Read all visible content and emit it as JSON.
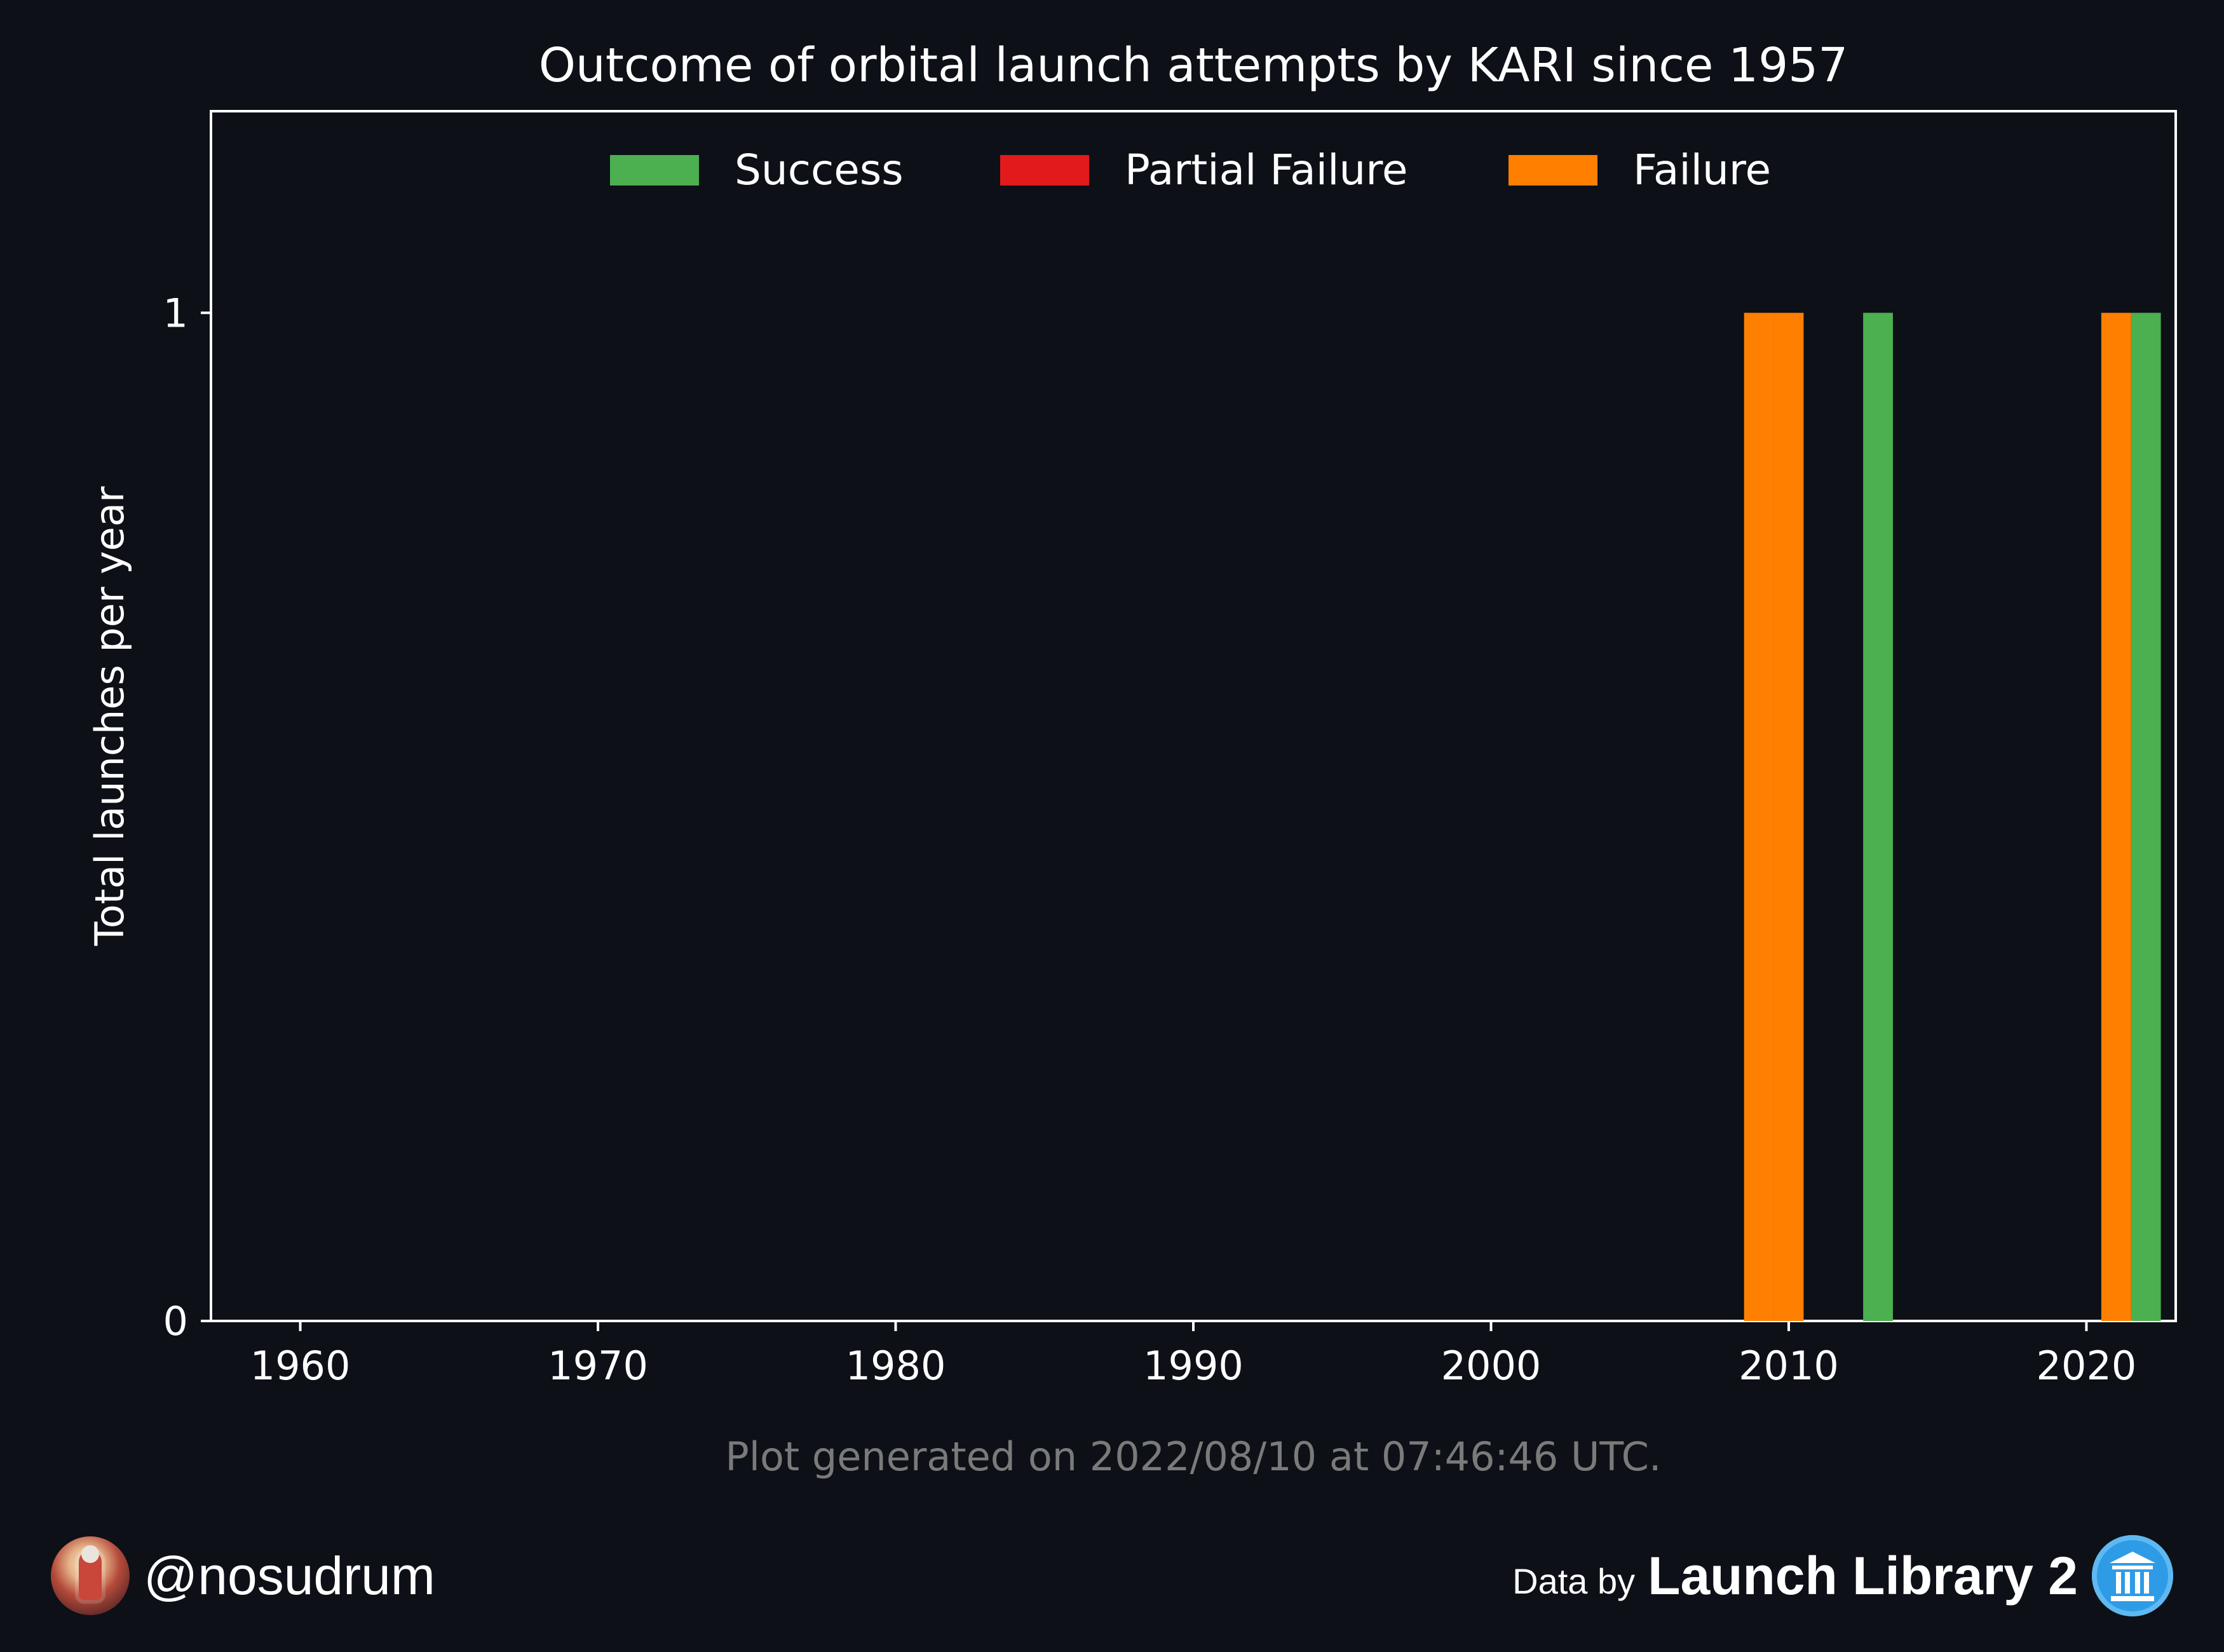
{
  "chart_data": {
    "type": "bar",
    "title": "Outcome of orbital launch attempts by KARI since 1957",
    "xlabel": "",
    "ylabel": "Total launches per year",
    "xlim": [
      1957,
      2023
    ],
    "ylim": [
      0,
      1.2
    ],
    "x_ticks": [
      "1960",
      "1970",
      "1980",
      "1990",
      "2000",
      "2010",
      "2020"
    ],
    "y_ticks": [
      "0",
      "1"
    ],
    "legend_position": "top-center",
    "grid": false,
    "stacked": true,
    "series": [
      {
        "name": "Success",
        "color": "#4caf50",
        "points": [
          {
            "year": 2013,
            "value": 1
          },
          {
            "year": 2022,
            "value": 1
          }
        ]
      },
      {
        "name": "Partial Failure",
        "color": "#e31a1c",
        "points": []
      },
      {
        "name": "Failure",
        "color": "#ff7f00",
        "points": [
          {
            "year": 2009,
            "value": 1
          },
          {
            "year": 2010,
            "value": 1
          },
          {
            "year": 2021,
            "value": 1
          }
        ]
      }
    ],
    "note": "Plot generated on 2022/08/10 at 07:46:46 UTC."
  },
  "footer": {
    "handle": "@nosudrum",
    "data_by": "Data by",
    "source": "Launch Library 2"
  },
  "colors": {
    "background": "#0d1017",
    "foreground": "#ffffff",
    "note": "#7a7a7a"
  },
  "icons": {
    "avatar": "astronaut-avatar-icon",
    "logo": "library-columns-icon"
  }
}
